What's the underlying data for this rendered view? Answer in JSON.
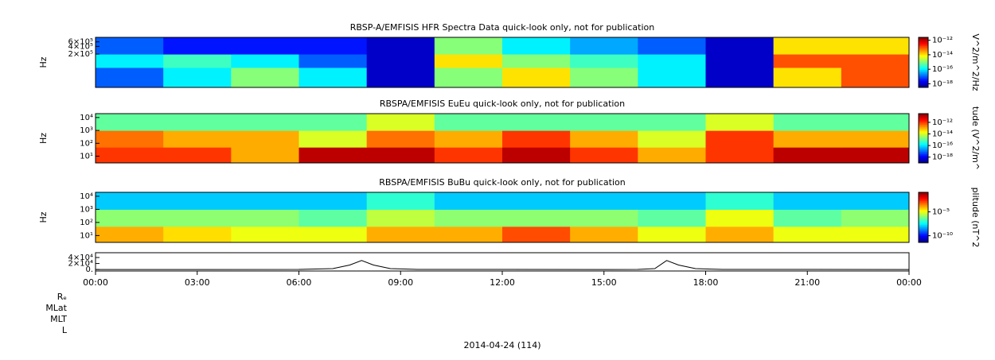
{
  "chart_data": [
    {
      "type": "heatmap",
      "title": "RBSP-A/EMFISIS  HFR Spectra Data quick-look only, not for publication",
      "ylabel": "Hz",
      "ylog": true,
      "ylim": [
        10000,
        900000
      ],
      "yticks": [
        {
          "value": 200000,
          "label": "2×10⁵"
        },
        {
          "value": 400000,
          "label": "4×10⁵"
        },
        {
          "value": 600000,
          "label": "6×10⁵"
        }
      ],
      "xlim": [
        0,
        24
      ],
      "x_edges": [
        0,
        2,
        4,
        6,
        8,
        10,
        12,
        14,
        16,
        18,
        20,
        22,
        24
      ],
      "y_edges": [
        10000,
        60000,
        200000,
        900000
      ],
      "z": [
        [
          -17,
          -16,
          -15,
          -16,
          -18,
          -15,
          -14,
          -15,
          -16,
          -18,
          -14,
          -13
        ],
        [
          -16,
          -15.5,
          -16,
          -17,
          -18,
          -14,
          -15,
          -15.5,
          -16,
          -18,
          -13,
          -13
        ],
        [
          -17,
          -17.5,
          -17.5,
          -17.5,
          -18,
          -15,
          -16,
          -16.5,
          -17,
          -18,
          -14,
          -14
        ]
      ],
      "zlabel": "V^2/m^2/Hz",
      "zlim": [
        -18.5,
        -11.6
      ],
      "zticks": [
        {
          "value": -12,
          "label": "10⁻¹²"
        },
        {
          "value": -14,
          "label": "10⁻¹⁴"
        },
        {
          "value": -16,
          "label": "10⁻¹⁶"
        },
        {
          "value": -18,
          "label": "10⁻¹⁸"
        }
      ]
    },
    {
      "type": "heatmap",
      "title": "RBSPA/EMFISIS  EuEu quick-look only, not for publication",
      "ylabel": "Hz",
      "ylog": true,
      "ylim": [
        3,
        20000
      ],
      "yticks": [
        {
          "value": 10,
          "label": "10¹"
        },
        {
          "value": 100,
          "label": "10²"
        },
        {
          "value": 1000,
          "label": "10³"
        },
        {
          "value": 10000,
          "label": "10⁴"
        }
      ],
      "xlim": [
        0,
        24
      ],
      "x_edges": [
        0,
        2,
        4,
        6,
        8,
        10,
        12,
        14,
        16,
        18,
        20,
        22,
        24
      ],
      "y_edges": [
        3,
        50,
        1000,
        20000
      ],
      "z": [
        [
          -12,
          -12,
          -13,
          -11,
          -11,
          -12,
          -11,
          -12,
          -13,
          -12,
          -11,
          -11
        ],
        [
          -12.5,
          -13,
          -13,
          -14,
          -12.5,
          -13,
          -12,
          -13,
          -14,
          -12,
          -13,
          -13
        ],
        [
          -15,
          -15,
          -15,
          -15,
          -14,
          -15,
          -15,
          -15,
          -15,
          -14,
          -15,
          -15
        ]
      ],
      "zlabel": "tude (V^2/m^",
      "zlim": [
        -19,
        -10.5
      ],
      "zticks": [
        {
          "value": -12,
          "label": "10⁻¹²"
        },
        {
          "value": -14,
          "label": "10⁻¹⁴"
        },
        {
          "value": -16,
          "label": "10⁻¹⁶"
        },
        {
          "value": -18,
          "label": "10⁻¹⁸"
        }
      ]
    },
    {
      "type": "heatmap",
      "title": "RBSPA/EMFISIS  BuBu quick-look only, not for publication",
      "ylabel": "Hz",
      "ylog": true,
      "ylim": [
        3,
        20000
      ],
      "yticks": [
        {
          "value": 10,
          "label": "10¹"
        },
        {
          "value": 100,
          "label": "10²"
        },
        {
          "value": 1000,
          "label": "10³"
        },
        {
          "value": 10000,
          "label": "10⁴"
        }
      ],
      "xlim": [
        0,
        24
      ],
      "x_edges": [
        0,
        2,
        4,
        6,
        8,
        10,
        12,
        14,
        16,
        18,
        20,
        22,
        24
      ],
      "y_edges": [
        3,
        50,
        1000,
        20000
      ],
      "z": [
        [
          -4,
          -4.5,
          -5,
          -5,
          -4,
          -4,
          -3,
          -4,
          -5,
          -4,
          -5,
          -5
        ],
        [
          -6,
          -6,
          -6,
          -6.5,
          -5.5,
          -6,
          -6,
          -6,
          -6.5,
          -5,
          -6.5,
          -6
        ],
        [
          -8,
          -8,
          -8,
          -8,
          -7,
          -8,
          -8,
          -8,
          -8,
          -7,
          -8,
          -8
        ]
      ],
      "zlabel": "plitude (nT^2",
      "zlim": [
        -11.4,
        -0.9
      ],
      "zticks": [
        {
          "value": -5,
          "label": "10⁻⁵"
        },
        {
          "value": -10,
          "label": "10⁻¹⁰"
        }
      ]
    },
    {
      "type": "line",
      "ylim": [
        -5000,
        56000
      ],
      "yticks": [
        {
          "value": 0,
          "label": "0."
        },
        {
          "value": 20000,
          "label": "2×10⁴"
        },
        {
          "value": 40000,
          "label": "4×10⁴"
        }
      ],
      "xlim": [
        0,
        24
      ],
      "xticks": [
        {
          "value": 0,
          "label": "00:00"
        },
        {
          "value": 3,
          "label": "03:00"
        },
        {
          "value": 6,
          "label": "06:00"
        },
        {
          "value": 9,
          "label": "09:00"
        },
        {
          "value": 12,
          "label": "12:00"
        },
        {
          "value": 15,
          "label": "15:00"
        },
        {
          "value": 18,
          "label": "18:00"
        },
        {
          "value": 21,
          "label": "21:00"
        },
        {
          "value": 24,
          "label": "00:00"
        }
      ],
      "x": [
        0,
        6,
        7,
        7.5,
        7.85,
        8.2,
        8.7,
        9.5,
        15,
        16,
        16.5,
        16.85,
        17.2,
        17.7,
        18.5,
        24
      ],
      "values": [
        0,
        200,
        3000,
        15000,
        30000,
        15000,
        3000,
        300,
        0,
        200,
        3000,
        30000,
        15000,
        3000,
        300,
        0
      ],
      "row_labels": [
        "Rₑ",
        "MLat",
        "MLT",
        "L"
      ],
      "xlabel": "2014-04-24 (114)"
    }
  ]
}
